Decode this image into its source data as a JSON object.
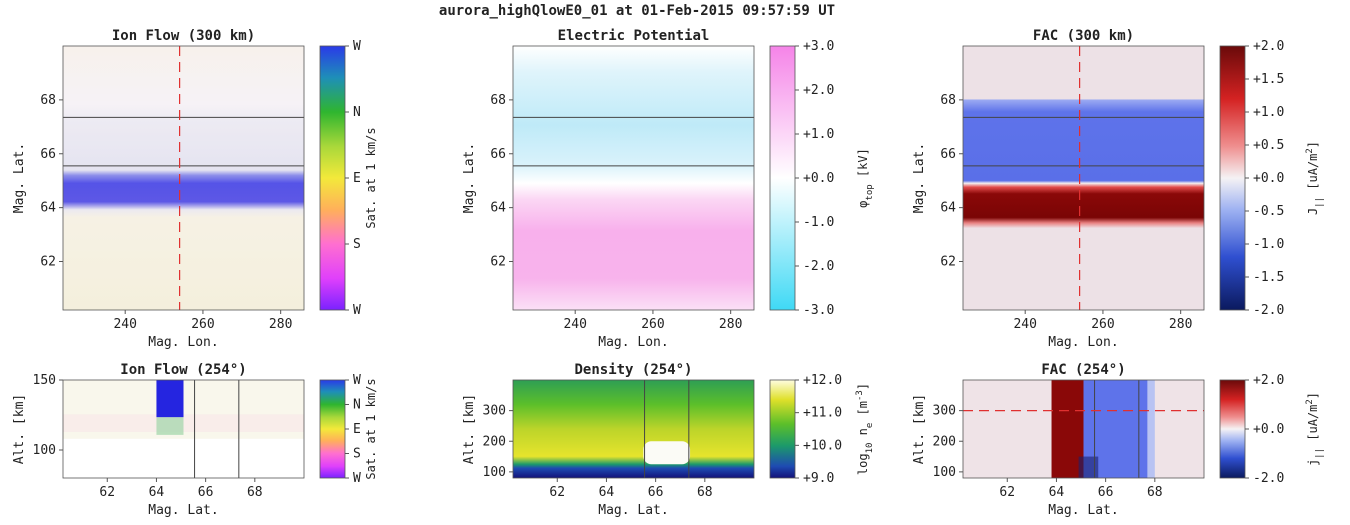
{
  "figure": {
    "suptitle": "aurora_highQlowE0_01 at 01-Feb-2015 09:57:59 UT"
  },
  "chart_data": [
    {
      "id": "ion-flow-map",
      "type": "heatmap",
      "title": "Ion Flow (300 km)",
      "xlabel": "Mag. Lon.",
      "ylabel": "Mag. Lat.",
      "xlim": [
        224,
        286
      ],
      "ylim": [
        60.2,
        70.0
      ],
      "xticks": [
        "240",
        "260",
        "280"
      ],
      "xtick_values": [
        240,
        260,
        280
      ],
      "yticks": [
        "62",
        "64",
        "66",
        "68"
      ],
      "ytick_values": [
        62,
        64,
        66,
        68
      ],
      "colorbar": {
        "label": "Sat. at 1 km/s",
        "ticks": [
          "W",
          "N",
          "E",
          "S",
          "W"
        ],
        "colormap": "hue-wheel"
      },
      "hlines": [
        67.35,
        65.55
      ],
      "vline": 254
    },
    {
      "id": "potential-map",
      "type": "heatmap",
      "title": "Electric Potential",
      "xlabel": "Mag. Lon.",
      "ylabel": "Mag. Lat.",
      "xlim": [
        224,
        286
      ],
      "ylim": [
        60.2,
        70.0
      ],
      "xticks": [
        "240",
        "260",
        "280"
      ],
      "xtick_values": [
        240,
        260,
        280
      ],
      "yticks": [
        "62",
        "64",
        "66",
        "68"
      ],
      "ytick_values": [
        62,
        64,
        66,
        68
      ],
      "colorbar": {
        "label": "φ_top [kV]",
        "label_main": "φ",
        "label_sub": "top",
        "label_tail": " [kV]",
        "ticks": [
          "+3.0",
          "+2.0",
          "+1.0",
          "+0.0",
          "-1.0",
          "-2.0",
          "-3.0"
        ],
        "colormap": "cyan-white-pink"
      },
      "hlines": [
        67.35,
        65.55
      ]
    },
    {
      "id": "fac-map",
      "type": "heatmap",
      "title": "FAC (300 km)",
      "xlabel": "Mag. Lon.",
      "ylabel": "Mag. Lat.",
      "xlim": [
        224,
        286
      ],
      "ylim": [
        60.2,
        70.0
      ],
      "xticks": [
        "240",
        "260",
        "280"
      ],
      "xtick_values": [
        240,
        260,
        280
      ],
      "yticks": [
        "62",
        "64",
        "66",
        "68"
      ],
      "ytick_values": [
        62,
        64,
        66,
        68
      ],
      "colorbar": {
        "label": "J_|| [uA/m^2]",
        "label_main": "J",
        "label_sub": "||",
        "label_tail": " [uA/m",
        "label_sup": "2",
        "label_end": "]",
        "ticks": [
          "+2.0",
          "+1.5",
          "+1.0",
          "+0.5",
          "+0.0",
          "-0.5",
          "-1.0",
          "-1.5",
          "-2.0"
        ],
        "colormap": "blue-white-red"
      },
      "hlines": [
        67.35,
        65.55
      ],
      "vline": 254
    },
    {
      "id": "ion-flow-alt",
      "type": "heatmap",
      "title": "Ion Flow (254°)",
      "xlabel": "Mag. Lat.",
      "ylabel": "Alt. [km]",
      "xlim": [
        60.2,
        70.0
      ],
      "ylim": [
        80,
        150
      ],
      "xticks": [
        "62",
        "64",
        "66",
        "68"
      ],
      "xtick_values": [
        62,
        64,
        66,
        68
      ],
      "yticks": [
        "100",
        "150"
      ],
      "ytick_values": [
        100,
        150
      ],
      "colorbar": {
        "label": "Sat. at 1 km/s",
        "ticks": [
          "W",
          "N",
          "E",
          "S",
          "W"
        ],
        "colormap": "hue-wheel"
      },
      "vlines": [
        65.55,
        67.35
      ]
    },
    {
      "id": "density-alt",
      "type": "heatmap",
      "title": "Density (254°)",
      "xlabel": "Mag. Lat.",
      "ylabel": "Alt. [km]",
      "xlim": [
        60.2,
        70.0
      ],
      "ylim": [
        80,
        400
      ],
      "xticks": [
        "62",
        "64",
        "66",
        "68"
      ],
      "xtick_values": [
        62,
        64,
        66,
        68
      ],
      "yticks": [
        "100",
        "200",
        "300"
      ],
      "ytick_values": [
        100,
        200,
        300
      ],
      "colorbar": {
        "label": "log10 n_e [m^-3]",
        "label_main": "log",
        "label_sub": "10",
        "label_mid": " n",
        "label_sub2": "e",
        "label_tail": " [m",
        "label_sup": "-3",
        "label_end": "]",
        "ticks": [
          "+12.0",
          "+11.0",
          "+10.0",
          "+9.0"
        ],
        "colormap": "viridis-like"
      },
      "vlines": [
        65.55,
        67.35
      ]
    },
    {
      "id": "fac-alt",
      "type": "heatmap",
      "title": "FAC (254°)",
      "xlabel": "Mag. Lat.",
      "ylabel": "Alt. [km]",
      "xlim": [
        60.2,
        70.0
      ],
      "ylim": [
        80,
        400
      ],
      "xticks": [
        "62",
        "64",
        "66",
        "68"
      ],
      "xtick_values": [
        62,
        64,
        66,
        68
      ],
      "yticks": [
        "100",
        "200",
        "300"
      ],
      "ytick_values": [
        100,
        200,
        300
      ],
      "colorbar": {
        "label": "j_|| [uA/m^2]",
        "label_main": "j",
        "label_sub": "||",
        "label_tail": " [uA/m",
        "label_sup": "2",
        "label_end": "]",
        "ticks": [
          "+2.0",
          "+0.0",
          "-2.0"
        ],
        "colormap": "blue-white-red"
      },
      "vlines": [
        65.55,
        67.35
      ],
      "hline": 300
    }
  ]
}
